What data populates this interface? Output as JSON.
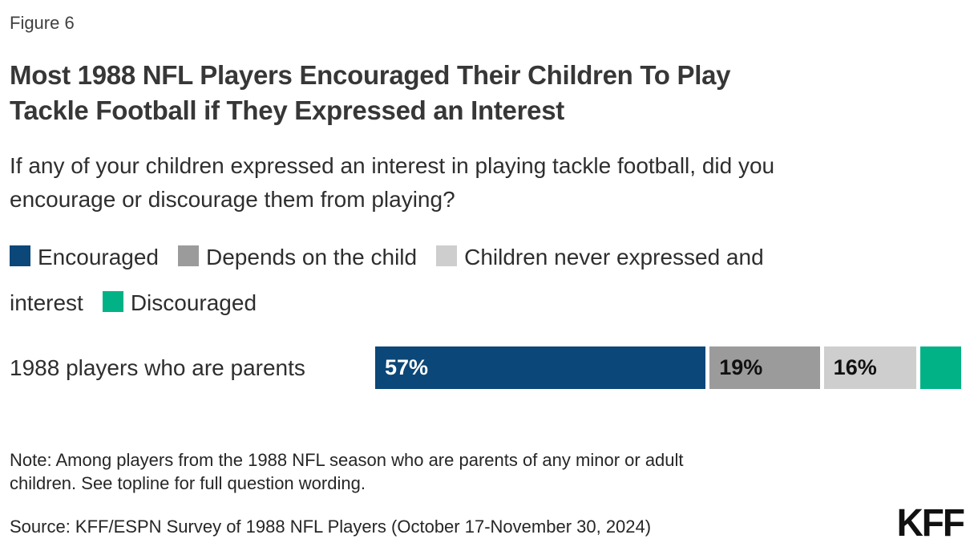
{
  "figure_label": "Figure 6",
  "title": "Most 1988 NFL Players Encouraged Their Children To Play\nTackle Football if They Expressed an Interest",
  "subtitle": "If any of your children expressed an interest in playing tackle football, did you\nencourage or discourage them from playing?",
  "legend": {
    "items": [
      {
        "label": "Encouraged",
        "color": "#0b4778"
      },
      {
        "label": "Depends on the child",
        "color": "#9b9b9b"
      },
      {
        "label": "Children never expressed and\ninterest",
        "color": "#cecece"
      },
      {
        "label": "Discouraged",
        "color": "#00b286"
      }
    ]
  },
  "chart_data": {
    "type": "bar",
    "subtype": "horizontal-stacked",
    "title": "Most 1988 NFL Players Encouraged Their Children To Play Tackle Football if They Expressed an Interest",
    "question": "If any of your children expressed an interest in playing tackle football, did you encourage or discourage them from playing?",
    "categories": [
      "1988 players who are parents"
    ],
    "xlim": [
      0,
      100
    ],
    "legend_position": "top",
    "grid": false,
    "series": [
      {
        "name": "Encouraged",
        "values": [
          57
        ],
        "color": "#0b4778",
        "label": "57%",
        "label_color": "#ffffff",
        "label_visible": true
      },
      {
        "name": "Depends on the child",
        "values": [
          19
        ],
        "color": "#9b9b9b",
        "label": "19%",
        "label_color": "#111111",
        "label_visible": true
      },
      {
        "name": "Children never expressed and interest",
        "values": [
          16
        ],
        "color": "#cecece",
        "label": "16%",
        "label_color": "#111111",
        "label_visible": true
      },
      {
        "name": "Discouraged",
        "values": [
          7
        ],
        "color": "#00b286",
        "label": "",
        "label_color": "#111111",
        "label_visible": false
      }
    ]
  },
  "note": "Note: Among players from the 1988 NFL season who are parents of any minor or adult\nchildren. See topline for full question wording.",
  "source": "Source: KFF/ESPN Survey of 1988 NFL Players (October 17-November 30, 2024)",
  "logo_text": "KFF",
  "colors": {
    "encouraged_blue": "#0b4778",
    "depends_gray": "#9b9b9b",
    "never_expressed_light_gray": "#cecece",
    "discouraged_green": "#00b286",
    "title_text": "#373737",
    "body_text": "#2e2e2e"
  }
}
